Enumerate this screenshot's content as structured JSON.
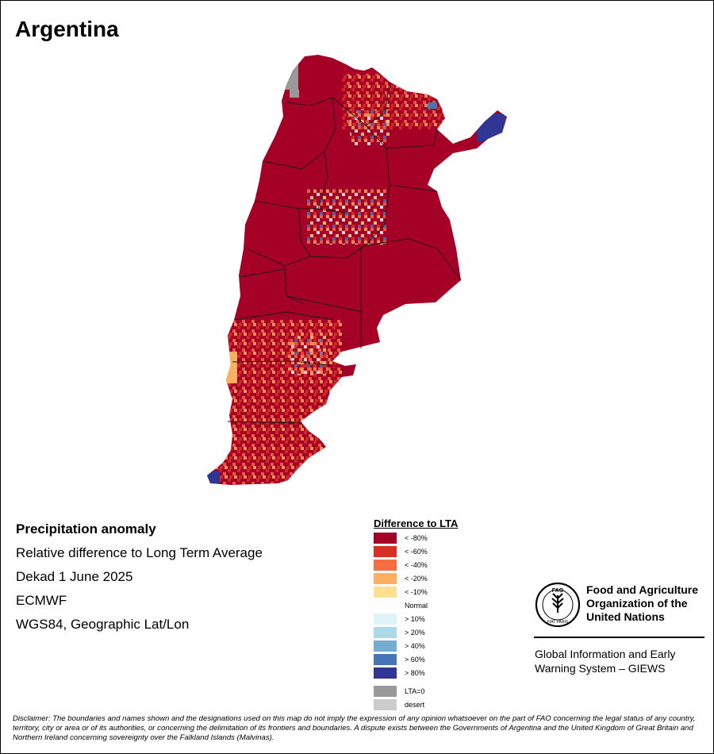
{
  "map": {
    "title": "Argentina",
    "info": {
      "heading": "Precipitation anomaly",
      "line1": "Relative difference to Long Term Average",
      "line2": "Dekad 1 June 2025",
      "line3": "ECMWF",
      "line4": "WGS84, Geographic Lat/Lon"
    },
    "legend": {
      "title": "Difference to LTA",
      "items": [
        {
          "label": "< -80%",
          "color": "#a50026"
        },
        {
          "label": "< -60%",
          "color": "#d73027"
        },
        {
          "label": "< -40%",
          "color": "#f46d43"
        },
        {
          "label": "< -20%",
          "color": "#fdae61"
        },
        {
          "label": "< -10%",
          "color": "#fee090"
        },
        {
          "label": "Normal",
          "color": "#ffffff"
        },
        {
          "label": "> 10%",
          "color": "#e0f3f8"
        },
        {
          "label": "> 20%",
          "color": "#abd9e9"
        },
        {
          "label": "> 40%",
          "color": "#74add1"
        },
        {
          "label": "> 60%",
          "color": "#4575b4"
        },
        {
          "label": "> 80%",
          "color": "#313695"
        },
        {
          "label": "LTA=0",
          "color": "#999999"
        },
        {
          "label": "desert",
          "color": "#cccccc"
        }
      ]
    },
    "org": {
      "logo_text": "FAO",
      "logo_motto": "FIAT PANIS",
      "name_line1": "Food and Agriculture",
      "name_line2": "Organization of the",
      "name_line3": "United Nations",
      "system_line1": "Global Information and Early",
      "system_line2": "Warning System – GIEWS"
    },
    "disclaimer": "Disclaimer: The boundaries and names shown and the designations used on this map do not imply the expression of any opinion whatsoever on the part of FAO concerning the legal status of any country, territory, city or area or of its authorities, or concerning the delimitation of its frontiers and boundaries. A dispute exists between the Governments of Argentina and the United Kingdom of Great Britain and Northern Ireland concerning sovereignty over the Falkland Islands (Malvinas)."
  }
}
